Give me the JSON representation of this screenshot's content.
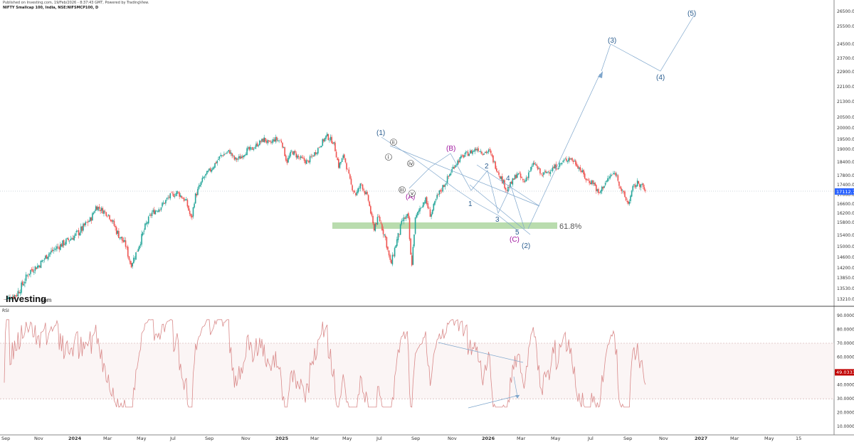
{
  "header": {
    "publish_line": "Published on Investing.com, 19/Feb/2026 - 8:37:43 GMT, Powered by TradingView.",
    "symbol_line": "NIFTY Smallcap 100, India, NSE:NIFSMCP100, D"
  },
  "watermark": {
    "brand": "Investing",
    "suffix": ".com"
  },
  "rsi_label": "RSI",
  "chart_data": [
    {
      "type": "candlestick",
      "title": "NIFTY Smallcap 100, India, NSE:NIFSMCP100, D",
      "y_tick_labels": [
        "26500.00",
        "25500.00",
        "24500.00",
        "23700.00",
        "22900.00",
        "22100.00",
        "21300.00",
        "20500.00",
        "20000.00",
        "19500.00",
        "19000.00",
        "18400.00",
        "17800.00",
        "17400.00",
        "17000.00",
        "16600.00",
        "16200.00",
        "15800.00",
        "15400.00",
        "15000.00",
        "14600.00",
        "14200.00",
        "13850.00",
        "13530.00",
        "13210.00"
      ],
      "x_tick_labels": [
        "Sep",
        "Nov",
        "2024",
        "Mar",
        "May",
        "Jul",
        "Sep",
        "Nov",
        "2025",
        "Mar",
        "May",
        "Jul",
        "Sep",
        "Nov",
        "2026",
        "Mar",
        "May",
        "Jul",
        "Sep",
        "Nov",
        "2027",
        "Mar",
        "May",
        "15"
      ],
      "x_tick_bold": [
        "2024",
        "2025",
        "2026",
        "2027"
      ],
      "last_price": "17112.75",
      "last_price_color": "#2962ff",
      "up_color": "#26a69a",
      "down_color": "#ef5350",
      "price_path": [
        [
          0.0,
          13100
        ],
        [
          0.3,
          13250
        ],
        [
          0.7,
          13350
        ],
        [
          1.0,
          13600
        ],
        [
          1.5,
          14100
        ],
        [
          2.0,
          14300
        ],
        [
          2.5,
          14700
        ],
        [
          3.0,
          14950
        ],
        [
          3.5,
          15150
        ],
        [
          4.0,
          15350
        ],
        [
          4.5,
          15600
        ],
        [
          5.0,
          15950
        ],
        [
          5.3,
          16500
        ],
        [
          5.6,
          16350
        ],
        [
          6.0,
          16150
        ],
        [
          6.5,
          15500
        ],
        [
          7.0,
          15050
        ],
        [
          7.3,
          14300
        ],
        [
          7.6,
          14750
        ],
        [
          8.0,
          15450
        ],
        [
          8.5,
          16200
        ],
        [
          9.0,
          16450
        ],
        [
          9.5,
          16900
        ],
        [
          10.0,
          17100
        ],
        [
          10.5,
          16700
        ],
        [
          10.8,
          15900
        ],
        [
          11.0,
          16900
        ],
        [
          11.5,
          17700
        ],
        [
          12.0,
          18150
        ],
        [
          12.5,
          18700
        ],
        [
          13.0,
          18900
        ],
        [
          13.3,
          18500
        ],
        [
          13.6,
          18600
        ],
        [
          14.0,
          18950
        ],
        [
          14.3,
          19000
        ],
        [
          14.6,
          19250
        ],
        [
          15.0,
          19500
        ],
        [
          15.3,
          19250
        ],
        [
          15.6,
          19500
        ],
        [
          16.0,
          19400
        ],
        [
          16.3,
          18400
        ],
        [
          16.6,
          18900
        ],
        [
          17.0,
          18600
        ],
        [
          17.5,
          18400
        ],
        [
          18.0,
          18900
        ],
        [
          18.3,
          19300
        ],
        [
          18.6,
          19650
        ],
        [
          19.0,
          19350
        ],
        [
          19.3,
          18200
        ],
        [
          19.6,
          18700
        ],
        [
          20.0,
          17400
        ],
        [
          20.3,
          17000
        ],
        [
          20.6,
          17450
        ],
        [
          21.0,
          16800
        ],
        [
          21.3,
          15600
        ],
        [
          21.6,
          16000
        ],
        [
          22.0,
          15300
        ],
        [
          22.3,
          14300
        ],
        [
          22.6,
          15100
        ],
        [
          23.0,
          15900
        ],
        [
          23.3,
          16100
        ],
        [
          23.5,
          14200
        ],
        [
          23.7,
          15900
        ],
        [
          24.0,
          16450
        ],
        [
          24.3,
          16800
        ],
        [
          24.6,
          16100
        ],
        [
          25.0,
          16950
        ],
        [
          25.5,
          17550
        ],
        [
          26.0,
          18300
        ],
        [
          26.5,
          18700
        ],
        [
          27.0,
          18900
        ],
        [
          27.3,
          19050
        ],
        [
          27.6,
          18850
        ],
        [
          28.0,
          18900
        ],
        [
          28.3,
          18300
        ],
        [
          28.6,
          17800
        ],
        [
          29.0,
          17200
        ],
        [
          29.3,
          17500
        ],
        [
          29.6,
          17900
        ],
        [
          30.0,
          17500
        ],
        [
          30.3,
          18000
        ],
        [
          30.6,
          18350
        ],
        [
          31.0,
          17800
        ],
        [
          31.3,
          17950
        ],
        [
          31.6,
          18100
        ],
        [
          32.0,
          18250
        ],
        [
          32.3,
          18450
        ],
        [
          32.6,
          18600
        ],
        [
          33.0,
          18350
        ],
        [
          33.3,
          18000
        ],
        [
          33.6,
          17600
        ],
        [
          34.0,
          17500
        ],
        [
          34.3,
          17000
        ],
        [
          34.6,
          17400
        ],
        [
          35.0,
          17800
        ],
        [
          35.3,
          17900
        ],
        [
          35.6,
          17200
        ],
        [
          36.0,
          16600
        ],
        [
          36.3,
          17300
        ],
        [
          36.6,
          17500
        ],
        [
          37.0,
          17150
        ]
      ],
      "rsi": {
        "y_tick_labels": [
          "90.0000",
          "80.0000",
          "70.0000",
          "60.0000",
          "50.0000",
          "40.0000",
          "30.0000",
          "20.0000",
          "10.0000"
        ],
        "overbought": 70,
        "oversold": 30,
        "last_value": "49.0333",
        "last_value_color": "#c00000",
        "line_color": "#d98a8a"
      },
      "annotations": {
        "wave_labels_blue": [
          "(1)",
          "(2)",
          "(3)",
          "(4)",
          "(5)",
          "1",
          "2",
          "3",
          "4",
          "5"
        ],
        "wave_labels_magenta": [
          "(A)",
          "(B)",
          "(C)"
        ],
        "wave_labels_small": [
          "i",
          "ii",
          "iii",
          "iv",
          "v"
        ],
        "fib_level": "61.8%",
        "fib_zone_color": "#b9dcae"
      }
    }
  ]
}
